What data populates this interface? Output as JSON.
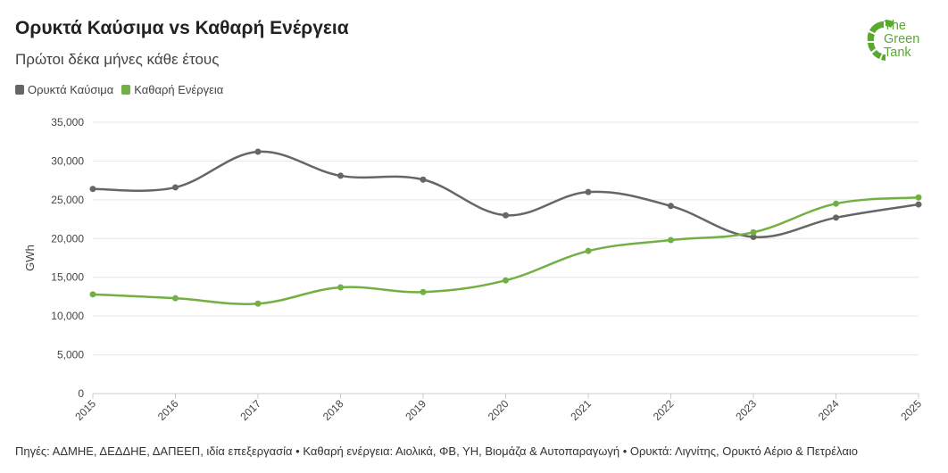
{
  "header": {
    "title": "Ορυκτά Καύσιμα vs Καθαρή Ενέργεια",
    "subtitle": "Πρώτοι δέκα μήνες κάθε έτους"
  },
  "logo": {
    "line1": "The",
    "line2": "Green",
    "line3": "Tank"
  },
  "footer": {
    "source": "Πηγές: ΑΔΜΗΕ, ΔΕΔΔΗΕ, ΔΑΠΕΕΠ, ιδία επεξεργασία • Καθαρή ενέργεια: Αιολικά, ΦΒ, ΥΗ, Βιομάζα & Αυτοπαραγωγή • Ορυκτά: Λιγνίτης, Ορυκτό Αέριο & Πετρέλαιο"
  },
  "colors": {
    "fossil": "#666666",
    "clean": "#72b043",
    "grid": "#e6e6e6",
    "axis": "#cccccc",
    "logo": "#5aa830"
  },
  "chart_data": {
    "type": "line",
    "title": "Ορυκτά Καύσιμα vs Καθαρή Ενέργεια",
    "subtitle": "Πρώτοι δέκα μήνες κάθε έτους",
    "xlabel": "",
    "ylabel": "GWh",
    "ylim": [
      0,
      35000
    ],
    "yticks": [
      0,
      5000,
      10000,
      15000,
      20000,
      25000,
      30000,
      35000
    ],
    "ytick_labels": [
      "0",
      "5,000",
      "10,000",
      "15,000",
      "20,000",
      "25,000",
      "30,000",
      "35,000"
    ],
    "categories": [
      "2015",
      "2016",
      "2017",
      "2018",
      "2019",
      "2020",
      "2021",
      "2022",
      "2023",
      "2024",
      "2025"
    ],
    "grid": true,
    "legend_position": "top-left",
    "series": [
      {
        "name": "Ορυκτά Καύσιμα",
        "color": "#666666",
        "values": [
          26400,
          26600,
          31200,
          28100,
          27600,
          23000,
          26000,
          24200,
          20200,
          22700,
          24400
        ]
      },
      {
        "name": "Καθαρή Ενέργεια",
        "color": "#72b043",
        "values": [
          12800,
          12300,
          11600,
          13700,
          13100,
          14600,
          18400,
          19800,
          20800,
          24500,
          25300
        ]
      }
    ]
  }
}
